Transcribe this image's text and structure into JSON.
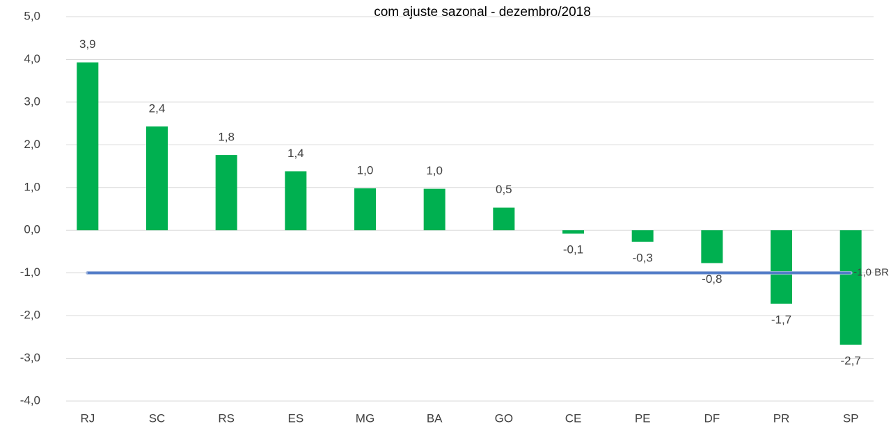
{
  "chart_data": {
    "type": "bar",
    "title": "com ajuste sazonal - dezembro/2018",
    "categories": [
      "RJ",
      "SC",
      "RS",
      "ES",
      "MG",
      "BA",
      "GO",
      "CE",
      "PE",
      "DF",
      "PR",
      "SP"
    ],
    "values": [
      3.93,
      2.43,
      1.76,
      1.38,
      0.98,
      0.97,
      0.53,
      -0.08,
      -0.27,
      -0.77,
      -1.72,
      -2.68
    ],
    "value_labels": [
      "3,9",
      "2,4",
      "1,8",
      "1,4",
      "1,0",
      "1,0",
      "0,5",
      "-0,1",
      "-0,3",
      "-0,8",
      "-1,7",
      "-2,7"
    ],
    "color": "#00b050",
    "reference_line": {
      "value": -1,
      "label": "-1,0 BR",
      "color": "#4472c4"
    },
    "ylim": [
      -4,
      5
    ],
    "yticks": [
      {
        "value": 5,
        "label": "5,0"
      },
      {
        "value": 4,
        "label": "4,0"
      },
      {
        "value": 3,
        "label": "3,0"
      },
      {
        "value": 2,
        "label": "2,0"
      },
      {
        "value": 1,
        "label": "1,0"
      },
      {
        "value": 0,
        "label": "0,0"
      },
      {
        "value": -1,
        "label": "-1,0"
      },
      {
        "value": -2,
        "label": "-2,0"
      },
      {
        "value": -3,
        "label": "-3,0"
      },
      {
        "value": -4,
        "label": "-4,0"
      }
    ],
    "grid": true
  }
}
